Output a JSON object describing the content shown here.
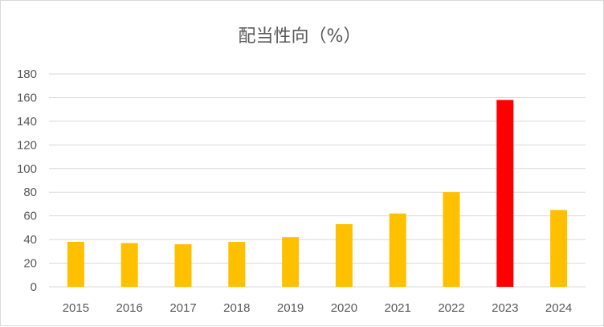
{
  "chart_data": {
    "type": "bar",
    "title": "配当性向（%）",
    "xlabel": "",
    "ylabel": "",
    "categories": [
      "2015",
      "2016",
      "2017",
      "2018",
      "2019",
      "2020",
      "2021",
      "2022",
      "2023",
      "2024"
    ],
    "series": [
      {
        "values": [
          38,
          37,
          36,
          38,
          42,
          53,
          62,
          80,
          158,
          65
        ]
      }
    ],
    "ylim": [
      0,
      180
    ],
    "yticks": [
      0,
      20,
      40,
      60,
      80,
      100,
      120,
      140,
      160,
      180
    ],
    "grid": true,
    "legend": "none",
    "colors": {
      "bar": "#FFC000",
      "highlight": "#FF0000",
      "gridline": "#d9d9d9",
      "text": "#595959"
    },
    "highlight_category": "2023"
  }
}
